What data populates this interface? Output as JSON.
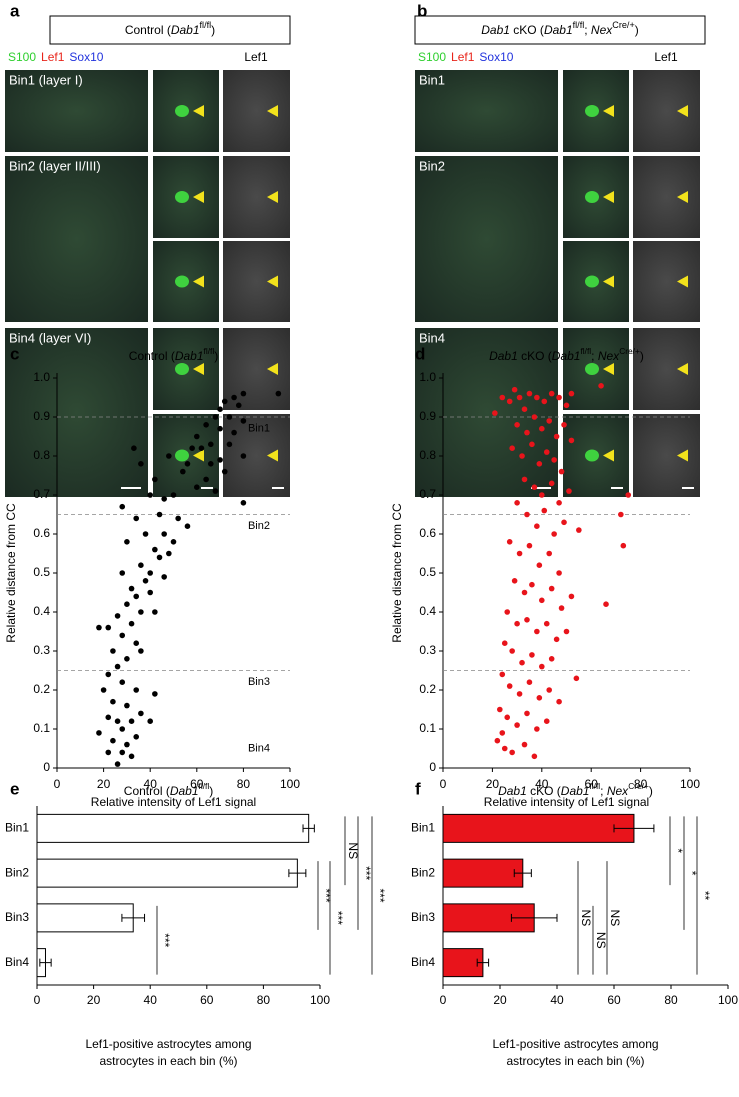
{
  "panels": [
    {
      "letter": "a",
      "title": [
        "Control (",
        "Dab1",
        "fl/fl",
        ")"
      ],
      "channels": [
        "S100",
        "Lef1",
        "Sox10"
      ],
      "gray_label": "Lef1",
      "rows": [
        "Bin1 (layer I)",
        "Bin2 (layer II/III)",
        "Bin4 (layer VI)"
      ]
    },
    {
      "letter": "b",
      "title": [
        "Dab1",
        " cKO (",
        "Dab1",
        "fl/fl",
        "; ",
        "Nex",
        "Cre/+",
        ")"
      ],
      "channels": [
        "S100",
        "Lef1",
        "Sox10"
      ],
      "gray_label": "Lef1",
      "rows": [
        "Bin1",
        "Bin2",
        "Bin4"
      ]
    }
  ],
  "chart_data": [
    {
      "letter": "c",
      "type": "scatter",
      "title": [
        "Control (",
        "Dab1",
        "fl/fl",
        ")"
      ],
      "xlabel": "Relative intensity of Lef1 signal",
      "ylabel": "Relative distance from CC",
      "color": "#000000",
      "x": [
        95,
        80,
        76,
        72,
        70,
        78,
        68,
        74,
        80,
        64,
        70,
        76,
        60,
        66,
        58,
        62,
        74,
        80,
        56,
        66,
        70,
        72,
        48,
        54,
        64,
        68,
        33,
        36,
        42,
        40,
        46,
        50,
        80,
        60,
        28,
        34,
        44,
        52,
        56,
        38,
        46,
        50,
        30,
        42,
        44,
        48,
        36,
        40,
        38,
        46,
        28,
        32,
        34,
        40,
        30,
        36,
        42,
        26,
        32,
        18,
        22,
        28,
        34,
        24,
        30,
        26,
        36,
        22,
        28,
        34,
        42,
        20,
        24,
        30,
        22,
        26,
        32,
        18,
        28,
        24,
        34,
        30,
        22,
        28,
        32,
        26,
        36,
        40
      ],
      "values": [
        0.96,
        0.96,
        0.95,
        0.94,
        0.92,
        0.93,
        0.9,
        0.9,
        0.89,
        0.88,
        0.87,
        0.86,
        0.85,
        0.83,
        0.82,
        0.82,
        0.83,
        0.8,
        0.78,
        0.78,
        0.79,
        0.76,
        0.8,
        0.76,
        0.74,
        0.71,
        0.82,
        0.78,
        0.74,
        0.7,
        0.69,
        0.7,
        0.68,
        0.72,
        0.67,
        0.64,
        0.65,
        0.64,
        0.62,
        0.6,
        0.6,
        0.58,
        0.58,
        0.56,
        0.54,
        0.55,
        0.52,
        0.5,
        0.48,
        0.49,
        0.5,
        0.46,
        0.44,
        0.45,
        0.42,
        0.4,
        0.4,
        0.39,
        0.37,
        0.36,
        0.36,
        0.34,
        0.32,
        0.3,
        0.28,
        0.26,
        0.3,
        0.24,
        0.22,
        0.2,
        0.19,
        0.2,
        0.17,
        0.16,
        0.13,
        0.12,
        0.12,
        0.09,
        0.1,
        0.07,
        0.08,
        0.06,
        0.04,
        0.04,
        0.03,
        0.01,
        0.14,
        0.12
      ],
      "xlim": [
        0,
        100
      ],
      "ylim": [
        0,
        1
      ],
      "xticks": [
        0,
        20,
        40,
        60,
        80,
        100
      ],
      "yticks": [
        0,
        0.1,
        0.2,
        0.3,
        0.4,
        0.5,
        0.6,
        0.7,
        0.8,
        0.9,
        {
          "value": 1,
          "label": "1.0"
        }
      ],
      "hlines": [
        0.9,
        0.65,
        0.25
      ],
      "annotations": [
        {
          "text": "Bin1",
          "y": 0.87
        },
        {
          "text": "Bin2",
          "y": 0.62
        },
        {
          "text": "Bin3",
          "y": 0.22
        },
        {
          "text": "Bin4",
          "y": 0.05
        }
      ]
    },
    {
      "letter": "d",
      "type": "scatter",
      "title": [
        "Dab1",
        " cKO (",
        "Dab1",
        "fl/fl",
        "; ",
        "Nex",
        "Cre/+",
        ")"
      ],
      "xlabel": "Relative intensity of Lef1 signal",
      "ylabel": "Relative distance from CC",
      "color": "#e8141b",
      "x": [
        21,
        24,
        27,
        29,
        31,
        33,
        35,
        38,
        41,
        44,
        47,
        50,
        52,
        64,
        30,
        34,
        37,
        40,
        43,
        46,
        49,
        52,
        28,
        32,
        36,
        39,
        42,
        45,
        48,
        33,
        37,
        40,
        44,
        47,
        51,
        75,
        73,
        72,
        30,
        34,
        38,
        41,
        45,
        49,
        55,
        27,
        31,
        35,
        39,
        43,
        47,
        66,
        29,
        33,
        36,
        40,
        44,
        48,
        52,
        26,
        30,
        34,
        38,
        42,
        46,
        50,
        25,
        28,
        32,
        36,
        40,
        44,
        54,
        24,
        27,
        31,
        35,
        39,
        43,
        47,
        23,
        26,
        30,
        34,
        38,
        42,
        22,
        25,
        28,
        24,
        33,
        37
      ],
      "values": [
        0.91,
        0.95,
        0.94,
        0.97,
        0.95,
        0.92,
        0.96,
        0.95,
        0.94,
        0.96,
        0.95,
        0.93,
        0.96,
        0.98,
        0.88,
        0.86,
        0.9,
        0.87,
        0.89,
        0.85,
        0.88,
        0.84,
        0.82,
        0.8,
        0.83,
        0.78,
        0.81,
        0.79,
        0.76,
        0.74,
        0.72,
        0.7,
        0.73,
        0.68,
        0.71,
        0.7,
        0.57,
        0.65,
        0.68,
        0.65,
        0.62,
        0.66,
        0.6,
        0.63,
        0.61,
        0.58,
        0.55,
        0.57,
        0.52,
        0.55,
        0.5,
        0.42,
        0.48,
        0.45,
        0.47,
        0.43,
        0.46,
        0.41,
        0.44,
        0.4,
        0.37,
        0.38,
        0.35,
        0.37,
        0.33,
        0.35,
        0.32,
        0.3,
        0.27,
        0.29,
        0.26,
        0.28,
        0.23,
        0.24,
        0.21,
        0.19,
        0.22,
        0.18,
        0.2,
        0.17,
        0.15,
        0.13,
        0.11,
        0.14,
        0.1,
        0.12,
        0.07,
        0.05,
        0.04,
        0.09,
        0.06,
        0.03
      ],
      "xlim": [
        0,
        100
      ],
      "ylim": [
        0,
        1
      ],
      "xticks": [
        0,
        20,
        40,
        60,
        80,
        100
      ],
      "yticks": [
        0,
        0.1,
        0.2,
        0.3,
        0.4,
        0.5,
        0.6,
        0.7,
        0.8,
        0.9,
        {
          "value": 1,
          "label": "1.0"
        }
      ],
      "hlines": [
        0.9,
        0.65,
        0.25
      ]
    },
    {
      "letter": "e",
      "type": "bar",
      "orientation": "horizontal",
      "title": [
        "Control (",
        "Dab1",
        "fl/fl",
        ")"
      ],
      "categories": [
        "Bin1",
        "Bin2",
        "Bin3",
        "Bin4"
      ],
      "values": [
        96,
        92,
        34,
        3
      ],
      "errors": [
        2,
        3,
        4,
        2
      ],
      "color": "#ffffff",
      "xlim": [
        0,
        100
      ],
      "xticks": [
        0,
        20,
        40,
        60,
        80,
        100
      ],
      "xlabel": [
        "Lef1-positive astrocytes among",
        "astrocytes in each bin (%)"
      ],
      "comparisons": [
        {
          "pair": [
            "Bin3",
            "Bin4"
          ],
          "label": "***"
        },
        {
          "pair": [
            "Bin2",
            "Bin3"
          ],
          "label": "***"
        },
        {
          "pair": [
            "Bin2",
            "Bin4"
          ],
          "label": "***"
        },
        {
          "pair": [
            "Bin1",
            "Bin2"
          ],
          "label": "NS"
        },
        {
          "pair": [
            "Bin1",
            "Bin3"
          ],
          "label": "***"
        },
        {
          "pair": [
            "Bin1",
            "Bin4"
          ],
          "label": "***"
        }
      ]
    },
    {
      "letter": "f",
      "type": "bar",
      "orientation": "horizontal",
      "title": [
        "Dab1",
        " cKO (",
        "Dab1",
        "fl/fl",
        "; ",
        "Nex",
        "Cre/+",
        ")"
      ],
      "categories": [
        "Bin1",
        "Bin2",
        "Bin3",
        "Bin4"
      ],
      "values": [
        67,
        28,
        32,
        14
      ],
      "errors": [
        7,
        3,
        8,
        2
      ],
      "color": "#e8141b",
      "xlim": [
        0,
        100
      ],
      "xticks": [
        0,
        20,
        40,
        60,
        80,
        100
      ],
      "xlabel": [
        "Lef1-positive astrocytes among",
        "astrocytes in each bin (%)"
      ],
      "comparisons": [
        {
          "pair": [
            "Bin2",
            "Bin4"
          ],
          "label": "NS"
        },
        {
          "pair": [
            "Bin3",
            "Bin4"
          ],
          "label": "NS"
        },
        {
          "pair": [
            "Bin2",
            "Bin4"
          ],
          "label": "NS"
        },
        {
          "pair": [
            "Bin1",
            "Bin2"
          ],
          "label": "*"
        },
        {
          "pair": [
            "Bin1",
            "Bin3"
          ],
          "label": "*"
        },
        {
          "pair": [
            "Bin1",
            "Bin4"
          ],
          "label": "**"
        }
      ]
    }
  ]
}
